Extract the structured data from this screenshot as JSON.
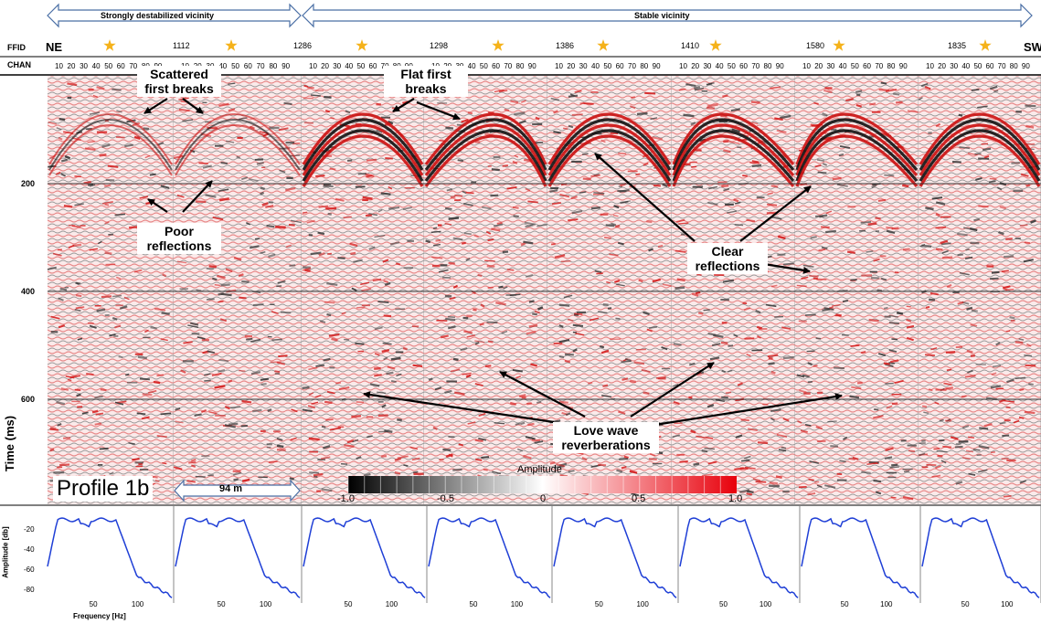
{
  "header": {
    "left_region_label": "Strongly destabilized vicinity",
    "right_region_label": "Stable vicinity",
    "ffid_label": "FFID",
    "chan_label": "CHAN",
    "direction_left": "NE",
    "direction_right": "SW",
    "ffid_values": [
      "1112",
      "1286",
      "1298",
      "1386",
      "1410",
      "1580",
      "1835"
    ],
    "channel_ticks": [
      "10",
      "20",
      "30",
      "40",
      "50",
      "60",
      "70",
      "80",
      "90"
    ]
  },
  "time_axis": {
    "label": "Time (ms)",
    "ticks": [
      "200",
      "400",
      "600"
    ]
  },
  "annotations": {
    "scattered": "Scattered first breaks",
    "poor": "Poor reflections",
    "flat": "Flat first breaks",
    "clear": "Clear reflections",
    "love": "Love wave reverberations"
  },
  "profile_label": "Profile 1b",
  "scale_bar_label": "94 m",
  "colorbar": {
    "title": "Amplitude",
    "tick_labels": [
      "-1.0",
      "-0.5",
      "0",
      "0.5",
      "1.0"
    ],
    "neg_color": "#000000",
    "zero_color": "#ffffff",
    "pos_color": "#e8000b"
  },
  "spectrum": {
    "ylabel": "Amplitude [db]",
    "xlabel": "Frequency [Hz]",
    "y_ticks": [
      "-20",
      "-40",
      "-60",
      "-80"
    ],
    "x_ticks": [
      "50",
      "100"
    ],
    "line_color": "#1f3fd6"
  }
}
